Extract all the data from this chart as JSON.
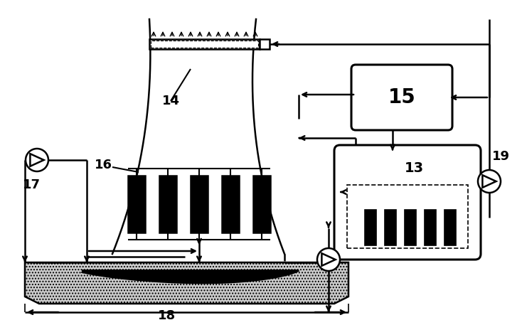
{
  "bg_color": "#ffffff",
  "line_color": "#000000",
  "label_14": "14",
  "label_15": "15",
  "label_16": "16",
  "label_17": "17",
  "label_18": "18",
  "label_13": "13",
  "label_19": "19",
  "figw": 7.34,
  "figh": 4.57,
  "dpi": 100
}
